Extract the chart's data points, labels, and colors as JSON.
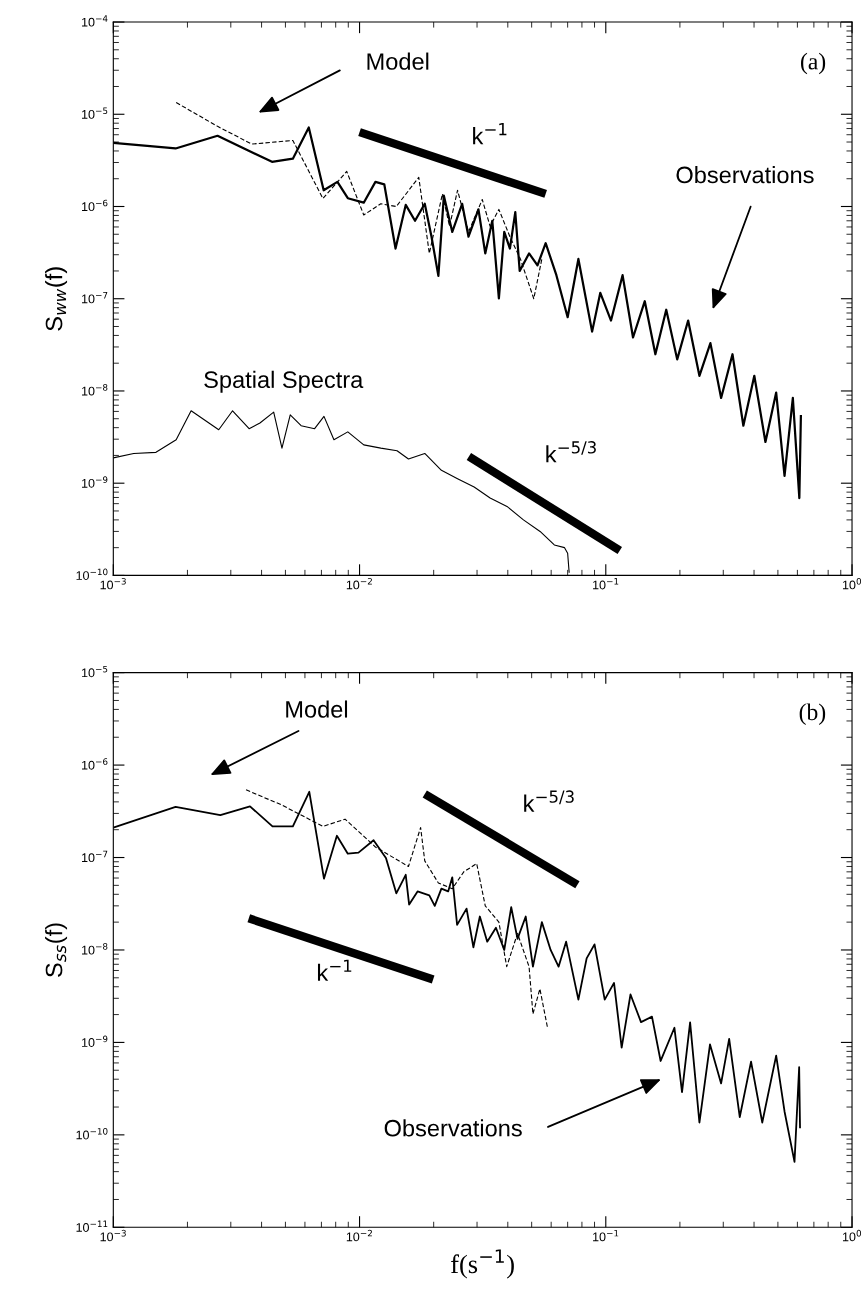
{
  "chart_data": [
    {
      "type": "line",
      "ylabel": "S$_{ww}$(f)",
      "log": "xy",
      "grid": false,
      "xlim": [
        0.001,
        1
      ],
      "ylim": [
        1e-10,
        0.0001
      ],
      "xticks": [
        {
          "value": 0.001,
          "label": "10$^{−3}$"
        },
        {
          "value": 0.01,
          "label": "10$^{−2}$"
        },
        {
          "value": 0.1,
          "label": "10$^{−1}$"
        },
        {
          "value": 1,
          "label": "10$^{0}$"
        }
      ],
      "yticks": [
        {
          "value": 1e-10,
          "label": "10$^{−10}$"
        },
        {
          "value": 1e-09,
          "label": "10$^{−9}$"
        },
        {
          "value": 1e-08,
          "label": "10$^{−8}$"
        },
        {
          "value": 1e-07,
          "label": "10$^{−7}$"
        },
        {
          "value": 1e-06,
          "label": "10$^{−6}$"
        },
        {
          "value": 1e-05,
          "label": "10$^{−5}$"
        },
        {
          "value": 0.0001,
          "label": "10$^{−4}$"
        }
      ],
      "series": [
        {
          "color": "#000000",
          "line_style": "solid",
          "x": [
            0.001,
            0.00179,
            0.00265,
            0.00441,
            0.00536,
            0.00622,
            0.00715,
            0.00813,
            0.00896,
            0.0104,
            0.0116,
            0.0126,
            0.014,
            0.0154,
            0.0168,
            0.0184,
            0.0196,
            0.0209,
            0.022,
            0.0238,
            0.0261,
            0.0277,
            0.0304,
            0.0324,
            0.0346,
            0.0368,
            0.0387,
            0.0408,
            0.0429,
            0.0447,
            0.0488,
            0.0528,
            0.057,
            0.063,
            0.07,
            0.0774,
            0.088,
            0.095,
            0.105,
            0.117,
            0.129,
            0.144,
            0.159,
            0.176,
            0.195,
            0.216,
            0.24,
            0.266,
            0.294,
            0.327,
            0.362,
            0.401,
            0.445,
            0.492,
            0.532,
            0.575,
            0.611,
            0.62
          ],
          "values": [
            4.9e-06,
            4.26e-06,
            5.85e-06,
            3.05e-06,
            3.3e-06,
            7.2e-06,
            1.5e-06,
            1.85e-06,
            1.23e-06,
            1.1e-06,
            1.85e-06,
            1.74e-06,
            3.5e-07,
            1.04e-06,
            7e-07,
            1.07e-06,
            4.7e-07,
            1.77e-07,
            1.31e-06,
            5.3e-07,
            1.07e-06,
            4.7e-07,
            9.3e-07,
            3.1e-07,
            7e-07,
            1.01e-07,
            5.3e-07,
            3.5e-07,
            8.7e-07,
            2e-07,
            3.1e-07,
            2.3e-07,
            4e-07,
            1.8e-07,
            6.3e-08,
            2.7e-07,
            4.4e-08,
            1.16e-07,
            5.8e-08,
            1.8e-07,
            3.8e-08,
            9.4e-08,
            2.5e-08,
            7.6e-08,
            2.2e-08,
            5.8e-08,
            1.46e-08,
            3.3e-08,
            8.4e-09,
            2.5e-08,
            4.2e-09,
            1.46e-08,
            2.8e-09,
            9.6e-09,
            1.2e-09,
            8.4e-09,
            6.9e-10,
            5.5e-09
          ]
        },
        {
          "color": "#000000",
          "line_style": "dashed",
          "x": [
            0.0018,
            0.00265,
            0.00365,
            0.00536,
            0.0071,
            0.00887,
            0.0104,
            0.0122,
            0.0141,
            0.0174,
            0.0192,
            0.0217,
            0.0232,
            0.025,
            0.0277,
            0.0315,
            0.0339,
            0.0368,
            0.0408,
            0.045,
            0.051,
            0.055
          ],
          "values": [
            1.34e-05,
            7.4e-06,
            4.75e-06,
            5.2e-06,
            1.22e-06,
            2.4e-06,
            8.1e-07,
            1.07e-06,
            1e-06,
            2.07e-06,
            3.1e-07,
            1.37e-06,
            6.1e-07,
            1.5e-06,
            5.3e-07,
            1.19e-06,
            6.1e-07,
            9.3e-07,
            4.7e-07,
            2.7e-07,
            1e-07,
            2.7e-07
          ]
        },
        {
          "name": "Spatial Spectra",
          "color": "#000000",
          "line_style": "solid",
          "x": [
            0.001,
            0.00121,
            0.00149,
            0.0018,
            0.00207,
            0.00268,
            0.00305,
            0.00356,
            0.00394,
            0.00448,
            0.00484,
            0.00523,
            0.00579,
            0.00657,
            0.00717,
            0.00787,
            0.00896,
            0.0104,
            0.0122,
            0.0142,
            0.0158,
            0.0184,
            0.0215,
            0.025,
            0.0292,
            0.0339,
            0.0397,
            0.0463,
            0.0541,
            0.0618,
            0.068,
            0.07,
            0.071
          ],
          "values": [
            1.88e-09,
            2.1e-09,
            2.16e-09,
            2.96e-09,
            6.1e-09,
            3.8e-09,
            6.1e-09,
            3.9e-09,
            4.5e-09,
            5.9e-09,
            2.4e-09,
            5.5e-09,
            4.2e-09,
            3.9e-09,
            5.3e-09,
            2.96e-09,
            3.6e-09,
            2.6e-09,
            2.4e-09,
            2.25e-09,
            1.83e-09,
            2.1e-09,
            1.38e-09,
            1.12e-09,
            9.1e-10,
            6.9e-10,
            5.6e-10,
            4e-10,
            3e-10,
            2.14e-10,
            2e-10,
            1.74e-10,
            1.07e-10
          ]
        },
        {
          "name": "k$^{−1}$",
          "color": "#000000",
          "line_style": "solid",
          "x": [
            0.01,
            0.057
          ],
          "values": [
            6.4e-06,
            1.37e-06
          ]
        },
        {
          "name": "k$^{−5/3}$",
          "color": "#000000",
          "line_style": "solid",
          "x": [
            0.0278,
            0.114
          ],
          "values": [
            1.95e-09,
            1.86e-10
          ]
        }
      ],
      "annotations": [
        "Model",
        "Observations",
        "(a)"
      ]
    },
    {
      "type": "line",
      "ylabel": "S$_{ss}$(f)",
      "xlabel": "f(s$^{−1}$)",
      "log": "xy",
      "grid": false,
      "xlim": [
        0.001,
        1
      ],
      "ylim": [
        1e-11,
        1e-05
      ],
      "xticks": [
        {
          "value": 0.001,
          "label": "10$^{−3}$"
        },
        {
          "value": 0.01,
          "label": "10$^{−2}$"
        },
        {
          "value": 0.1,
          "label": "10$^{−1}$"
        },
        {
          "value": 1,
          "label": "10$^{0}$"
        }
      ],
      "yticks": [
        {
          "value": 1e-11,
          "label": "10$^{−11}$"
        },
        {
          "value": 1e-10,
          "label": "10$^{−10}$"
        },
        {
          "value": 1e-09,
          "label": "10$^{−9}$"
        },
        {
          "value": 1e-08,
          "label": "10$^{−8}$"
        },
        {
          "value": 1e-07,
          "label": "10$^{−7}$"
        },
        {
          "value": 1e-06,
          "label": "10$^{−6}$"
        },
        {
          "value": 1e-05,
          "label": "10$^{−5}$"
        }
      ],
      "series": [
        {
          "color": "#000000",
          "line_style": "solid",
          "x": [
            0.001,
            0.00179,
            0.00272,
            0.00359,
            0.00443,
            0.00536,
            0.00625,
            0.00717,
            0.00809,
            0.00896,
            0.0099,
            0.0114,
            0.0128,
            0.0141,
            0.0154,
            0.0159,
            0.0172,
            0.0192,
            0.0202,
            0.0215,
            0.0229,
            0.0238,
            0.0249,
            0.0272,
            0.029,
            0.0308,
            0.033,
            0.0358,
            0.0387,
            0.0413,
            0.0438,
            0.0473,
            0.0506,
            0.055,
            0.0597,
            0.0643,
            0.069,
            0.0774,
            0.0836,
            0.09,
            0.099,
            0.108,
            0.116,
            0.126,
            0.139,
            0.154,
            0.167,
            0.19,
            0.204,
            0.22,
            0.24,
            0.265,
            0.294,
            0.317,
            0.35,
            0.389,
            0.432,
            0.492,
            0.532,
            0.584,
            0.61,
            0.615
          ],
          "values": [
            2.11e-07,
            3.53e-07,
            2.87e-07,
            3.58e-07,
            2.17e-07,
            2.17e-07,
            5.14e-07,
            5.9e-08,
            1.72e-07,
            1.1e-07,
            1.13e-07,
            1.54e-07,
            9.9e-08,
            4.1e-08,
            6.5e-08,
            3.1e-08,
            4.3e-08,
            3.9e-08,
            3e-08,
            4.6e-08,
            4.3e-08,
            6.1e-08,
            1.87e-08,
            2.8e-08,
            1.07e-08,
            2.3e-08,
            1.23e-08,
            1.74e-08,
            1e-08,
            2.9e-08,
            1.32e-08,
            2.3e-08,
            6.6e-09,
            2e-08,
            1e-08,
            6.6e-09,
            1.23e-08,
            2.9e-09,
            8.1e-09,
            1.15e-08,
            2.9e-09,
            4.4e-09,
            8.8e-10,
            3.3e-09,
            1.66e-09,
            1.9e-09,
            6.3e-10,
            1.44e-09,
            2.9e-10,
            1.65e-09,
            1.36e-10,
            9.5e-10,
            3.6e-10,
            1.09e-09,
            1.56e-10,
            6.2e-10,
            1.36e-10,
            7.2e-10,
            1.79e-10,
            5.1e-11,
            5.4e-10,
            1.18e-10
          ]
        },
        {
          "color": "#000000",
          "line_style": "dashed",
          "x": [
            0.00346,
            0.00483,
            0.0071,
            0.00873,
            0.0116,
            0.0158,
            0.0177,
            0.0184,
            0.0209,
            0.0238,
            0.0265,
            0.0299,
            0.0324,
            0.0368,
            0.0396,
            0.0438,
            0.0488,
            0.0506,
            0.054,
            0.058
          ],
          "values": [
            5.4e-07,
            3.7e-07,
            2.17e-07,
            2.6e-07,
            1.3e-07,
            8e-08,
            2.11e-07,
            9.2e-08,
            5.3e-08,
            4.6e-08,
            7e-08,
            8.6e-08,
            3e-08,
            2e-08,
            6.6e-09,
            1.51e-08,
            6.6e-09,
            2.03e-09,
            3.8e-09,
            1.44e-09
          ]
        },
        {
          "name": "k$^{−5/3}$",
          "color": "#000000",
          "line_style": "solid",
          "x": [
            0.0184,
            0.0767
          ],
          "values": [
            4.86e-07,
            5.07e-08
          ]
        },
        {
          "name": "k$^{−1}$",
          "color": "#000000",
          "line_style": "solid",
          "x": [
            0.00355,
            0.0199
          ],
          "values": [
            2.2e-08,
            4.8e-09
          ]
        }
      ],
      "annotations": [
        "Model",
        "Observations",
        "(b)"
      ]
    }
  ]
}
